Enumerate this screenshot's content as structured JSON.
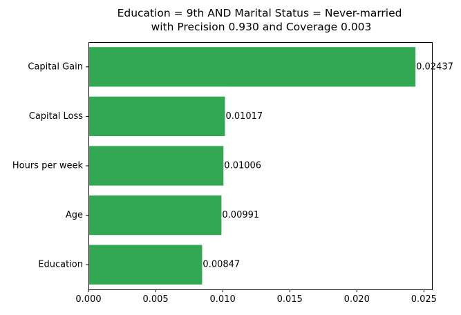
{
  "chart_data": {
    "type": "bar",
    "orientation": "horizontal",
    "title": "Education = 9th AND Marital Status = Never-married\nwith Precision 0.930 and Coverage 0.003",
    "xlabel": "",
    "ylabel": "",
    "categories": [
      "Capital Gain",
      "Capital Loss",
      "Hours per week",
      "Age",
      "Education"
    ],
    "values": [
      0.02437,
      0.01017,
      0.01006,
      0.00991,
      0.00847
    ],
    "data_labels": [
      "0.02437",
      "0.01017",
      "0.01006",
      "0.00991",
      "0.00847"
    ],
    "xlim": [
      0,
      0.0256
    ],
    "xticks": [
      0.0,
      0.005,
      0.01,
      0.015,
      0.02,
      0.025
    ],
    "xtick_labels": [
      "0.000",
      "0.005",
      "0.010",
      "0.015",
      "0.020",
      "0.025"
    ],
    "bar_color": "#33a853",
    "grid": false,
    "legend": "none"
  }
}
